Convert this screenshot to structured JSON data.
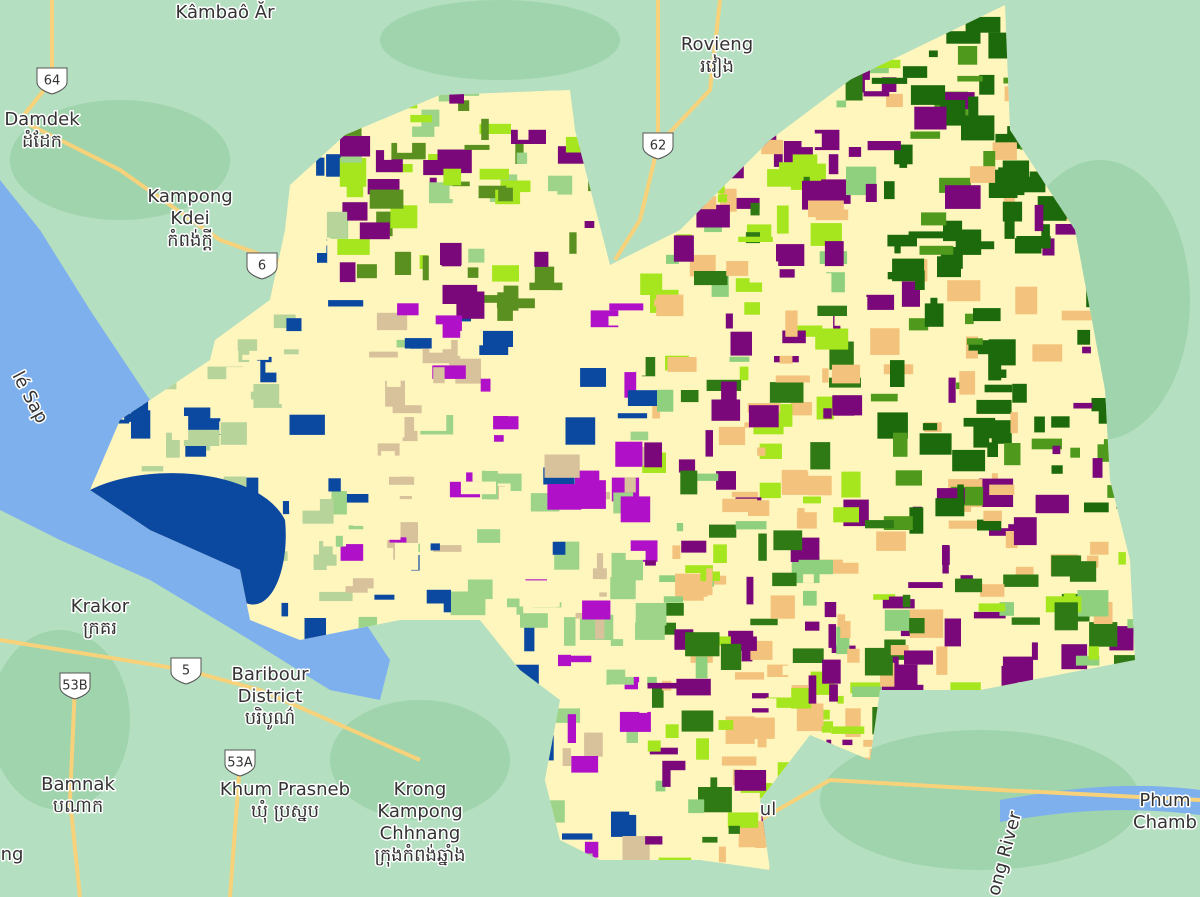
{
  "labels": [
    {
      "lines": [
        "Kâmbaô Ăr"
      ]
    },
    {
      "lines": [
        "Rovieng",
        "រវៀង"
      ]
    },
    {
      "lines": [
        "Damdek",
        "ដំដែក"
      ]
    },
    {
      "lines": [
        "Kampong",
        "Kdei",
        "កំពង់ក្ដី"
      ]
    },
    {
      "lines": [
        "lé Sap"
      ]
    },
    {
      "lines": [
        "Krakor",
        "ក្រគរ"
      ]
    },
    {
      "lines": [
        "Baribour",
        "District",
        "បរិបូណ៌"
      ]
    },
    {
      "lines": [
        "Bamnak",
        "បណាក"
      ]
    },
    {
      "lines": [
        "Khum Prasneb",
        "ឃុំ ប្រស្នប"
      ]
    },
    {
      "lines": [
        "Krong",
        "Kampong",
        "Chhnang",
        "ក្រុងកំពង់ឆ្នាំង"
      ]
    },
    {
      "lines": [
        "ul"
      ]
    },
    {
      "lines": [
        "Phum",
        "Chamb"
      ]
    },
    {
      "lines": [
        "ong River"
      ]
    },
    {
      "lines": [
        "ng"
      ]
    }
  ],
  "shields": [
    "64",
    "62",
    "6",
    "5",
    "53B",
    "53A"
  ]
}
